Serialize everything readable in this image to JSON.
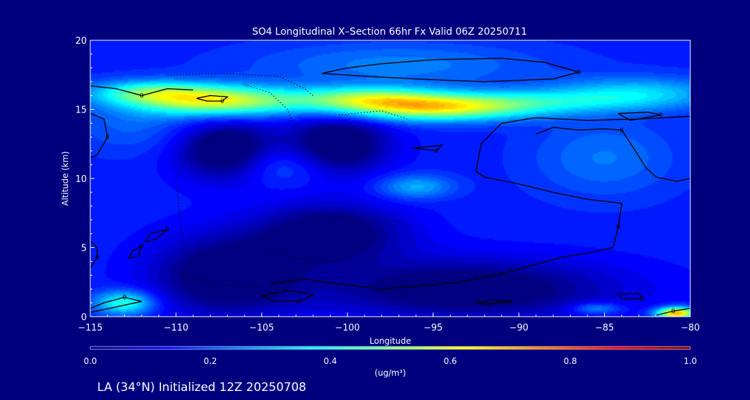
{
  "chart_data": {
    "type": "heatmap",
    "title": "SO4 Longitudinal X–Section 66hr  Fx Valid 06Z 20250711",
    "xlabel": "Longitude",
    "ylabel": "Altitude (km)",
    "xlim": [
      -115,
      -80
    ],
    "ylim": [
      0,
      20
    ],
    "x_ticks": [
      -115,
      -110,
      -105,
      -100,
      -95,
      -90,
      -85,
      -80
    ],
    "x_tick_labels": [
      "−115",
      "−110",
      "−105",
      "−100",
      "−95",
      "−90",
      "−85",
      "−80"
    ],
    "y_ticks": [
      0,
      5,
      10,
      15,
      20
    ],
    "colorbar": {
      "range": [
        0.0,
        1.0
      ],
      "ticks": [
        0.0,
        0.2,
        0.4,
        0.6,
        0.8,
        1.0
      ],
      "tick_labels": [
        "0.0",
        "0.2",
        "0.4",
        "0.6",
        "0.8",
        "1.0"
      ],
      "unit_label": "(ug/m³)",
      "colormap": "jet"
    },
    "background_value": 0.15,
    "features": [
      {
        "lon": -107.5,
        "alt": 15.6,
        "value": 0.58,
        "sx": 3.2,
        "sy": 0.75
      },
      {
        "lon": -111.5,
        "alt": 16.2,
        "value": 0.4,
        "sx": 2.5,
        "sy": 0.6
      },
      {
        "lon": -95.0,
        "alt": 15.1,
        "value": 0.58,
        "sx": 4.0,
        "sy": 0.65
      },
      {
        "lon": -99.0,
        "alt": 15.8,
        "value": 0.45,
        "sx": 3.0,
        "sy": 0.6
      },
      {
        "lon": -89.0,
        "alt": 15.6,
        "value": 0.3,
        "sx": 4.5,
        "sy": 0.6
      },
      {
        "lon": -83.0,
        "alt": 16.2,
        "value": 0.32,
        "sx": 3.5,
        "sy": 0.8
      },
      {
        "lon": -97.0,
        "alt": 18.2,
        "value": 0.25,
        "sx": 6.0,
        "sy": 1.2
      },
      {
        "lon": -112.5,
        "alt": 14.0,
        "value": 0.22,
        "sx": 2.5,
        "sy": 1.5
      },
      {
        "lon": -96.0,
        "alt": 9.4,
        "value": 0.3,
        "sx": 1.5,
        "sy": 0.6
      },
      {
        "lon": -104.0,
        "alt": 11.0,
        "value": 0.24,
        "sx": 2.0,
        "sy": 1.0
      },
      {
        "lon": -85.0,
        "alt": 11.5,
        "value": 0.24,
        "sx": 3.0,
        "sy": 2.0
      },
      {
        "lon": -113.0,
        "alt": 1.0,
        "value": 0.42,
        "sx": 1.2,
        "sy": 0.6
      },
      {
        "lon": -80.8,
        "alt": 0.25,
        "value": 0.72,
        "sx": 0.8,
        "sy": 0.3
      },
      {
        "lon": -85.5,
        "alt": 0.6,
        "value": 0.3,
        "sx": 1.0,
        "sy": 0.3
      },
      {
        "lon": -107.0,
        "alt": 12.0,
        "value": -0.07,
        "sx": 2.0,
        "sy": 1.5
      },
      {
        "lon": -100.5,
        "alt": 12.5,
        "value": -0.07,
        "sx": 2.0,
        "sy": 1.5
      },
      {
        "lon": -101.0,
        "alt": 6.0,
        "value": -0.05,
        "sx": 3.0,
        "sy": 1.5
      },
      {
        "lon": -107.0,
        "alt": 3.0,
        "value": -0.06,
        "sx": 3.0,
        "sy": 2.0
      },
      {
        "lon": -93.0,
        "alt": 2.0,
        "value": -0.05,
        "sx": 6.0,
        "sy": 1.5
      }
    ],
    "contours": [
      {
        "label": "0",
        "style": "solid",
        "points": [
          [
            -101.5,
            17.6
          ],
          [
            -100,
            18.0
          ],
          [
            -98,
            18.3
          ],
          [
            -95,
            18.6
          ],
          [
            -91,
            18.7
          ],
          [
            -88.5,
            18.4
          ],
          [
            -86.5,
            17.7
          ],
          [
            -88,
            17.2
          ],
          [
            -92,
            17.0
          ],
          [
            -96,
            17.2
          ],
          [
            -99,
            17.4
          ],
          [
            -101.5,
            17.6
          ]
        ]
      },
      {
        "label": "0",
        "style": "solid",
        "points": [
          [
            -115,
            16.7
          ],
          [
            -113.5,
            16.5
          ],
          [
            -112,
            16.0
          ],
          [
            -110.5,
            16.5
          ],
          [
            -109,
            16.4
          ]
        ]
      },
      {
        "label": "0",
        "style": "solid",
        "points": [
          [
            -108.8,
            15.8
          ],
          [
            -108,
            16.0
          ],
          [
            -107,
            15.9
          ],
          [
            -107.3,
            15.6
          ],
          [
            -108.2,
            15.6
          ],
          [
            -108.8,
            15.8
          ]
        ]
      },
      {
        "label": "0",
        "style": "solid",
        "points": [
          [
            -115,
            14.7
          ],
          [
            -114.2,
            14.3
          ],
          [
            -114.0,
            13.0
          ],
          [
            -114.6,
            11.7
          ],
          [
            -115,
            11.5
          ]
        ]
      },
      {
        "label": "0",
        "style": "solid",
        "points": [
          [
            -96.2,
            12.2
          ],
          [
            -94.5,
            12.4
          ],
          [
            -94.8,
            12.0
          ],
          [
            -96.2,
            12.2
          ]
        ]
      },
      {
        "label": "0",
        "style": "solid",
        "points": [
          [
            -80,
            14.5
          ],
          [
            -83,
            14.3
          ],
          [
            -86,
            14.2
          ],
          [
            -89,
            14.4
          ],
          [
            -91,
            14.0
          ],
          [
            -92.2,
            12.5
          ],
          [
            -92.5,
            10.5
          ],
          [
            -92.0,
            10.1
          ],
          [
            -90.0,
            9.6
          ],
          [
            -88.0,
            9.0
          ],
          [
            -86.0,
            8.5
          ],
          [
            -84.0,
            8.2
          ],
          [
            -84.2,
            6.5
          ],
          [
            -84.5,
            5.0
          ],
          [
            -86.0,
            4.6
          ],
          [
            -87.5,
            4.3
          ],
          [
            -89.0,
            3.8
          ],
          [
            -91.0,
            3.1
          ],
          [
            -93.5,
            2.5
          ],
          [
            -96.0,
            2.2
          ],
          [
            -98.0,
            2.0
          ],
          [
            -100.0,
            2.3
          ],
          [
            -102.5,
            2.7
          ],
          [
            -104.5,
            2.4
          ]
        ]
      },
      {
        "label": "0",
        "style": "solid",
        "points": [
          [
            -84.2,
            14.7
          ],
          [
            -82.5,
            14.8
          ],
          [
            -81.7,
            14.6
          ],
          [
            -83.5,
            14.2
          ],
          [
            -84.2,
            14.7
          ]
        ]
      },
      {
        "label": "0",
        "style": "solid",
        "points": [
          [
            -80,
            10.0
          ],
          [
            -80.8,
            9.8
          ],
          [
            -82.0,
            10.1
          ],
          [
            -82.6,
            10.8
          ],
          [
            -83.2,
            12.0
          ],
          [
            -84.0,
            13.5
          ],
          [
            -85.0,
            13.6
          ],
          [
            -86.5,
            13.5
          ],
          [
            -88.0,
            13.7
          ],
          [
            -89.0,
            13.2
          ]
        ]
      },
      {
        "label": "0",
        "style": "solid",
        "points": [
          [
            -115,
            0.3
          ],
          [
            -113.5,
            0.7
          ],
          [
            -112,
            1.1
          ],
          [
            -113,
            1.4
          ],
          [
            -114.2,
            1.0
          ],
          [
            -115,
            0.6
          ]
        ]
      },
      {
        "label": "0",
        "style": "solid",
        "points": [
          [
            -111.8,
            5.4
          ],
          [
            -111.5,
            6.0
          ],
          [
            -110.5,
            6.3
          ],
          [
            -111.2,
            5.6
          ],
          [
            -111.8,
            5.4
          ]
        ]
      },
      {
        "label": "0",
        "style": "solid",
        "points": [
          [
            -112.8,
            4.2
          ],
          [
            -112.5,
            4.8
          ],
          [
            -112.0,
            5.1
          ],
          [
            -112.2,
            4.4
          ],
          [
            -112.8,
            4.2
          ]
        ]
      },
      {
        "label": "0",
        "style": "solid",
        "points": [
          [
            -115,
            5.5
          ],
          [
            -114.6,
            5.0
          ],
          [
            -114.6,
            4.3
          ],
          [
            -115,
            3.5
          ]
        ]
      },
      {
        "label": "0",
        "style": "solid",
        "points": [
          [
            -105.0,
            1.5
          ],
          [
            -103.5,
            1.9
          ],
          [
            -102.0,
            1.6
          ],
          [
            -102.8,
            1.1
          ],
          [
            -104.2,
            1.1
          ],
          [
            -105.0,
            1.5
          ]
        ]
      },
      {
        "label": "0",
        "style": "solid",
        "points": [
          [
            -92.5,
            1.0
          ],
          [
            -91.5,
            1.2
          ],
          [
            -90.5,
            1.1
          ],
          [
            -91.8,
            0.9
          ],
          [
            -92.5,
            1.0
          ]
        ]
      },
      {
        "label": "0",
        "style": "solid",
        "points": [
          [
            -84.2,
            1.6
          ],
          [
            -83.0,
            1.7
          ],
          [
            -82.8,
            1.3
          ],
          [
            -84.0,
            1.3
          ],
          [
            -84.2,
            1.6
          ]
        ]
      },
      {
        "label": "0",
        "style": "solid",
        "points": [
          [
            -80,
            0.6
          ],
          [
            -81.0,
            0.4
          ],
          [
            -82.0,
            0.1
          ]
        ]
      },
      {
        "label": "",
        "style": "dotted",
        "points": [
          [
            -110.5,
            17.5
          ],
          [
            -107.0,
            17.6
          ],
          [
            -104.0,
            17.4
          ],
          [
            -102.5,
            16.5
          ],
          [
            -102.0,
            16.0
          ]
        ]
      },
      {
        "label": "",
        "style": "dotted",
        "points": [
          [
            -106.0,
            16.8
          ],
          [
            -104.5,
            16.2
          ],
          [
            -103.5,
            15.0
          ],
          [
            -103.0,
            13.5
          ]
        ]
      },
      {
        "label": "",
        "style": "dotted",
        "points": [
          [
            -100.5,
            14.6
          ],
          [
            -98.0,
            14.9
          ],
          [
            -96.5,
            14.3
          ]
        ]
      },
      {
        "label": "",
        "style": "dotted",
        "points": [
          [
            -107.0,
            13.5
          ],
          [
            -109.0,
            12.5
          ],
          [
            -110.0,
            10.0
          ],
          [
            -109.8,
            7.5
          ],
          [
            -109.5,
            5.0
          ]
        ]
      },
      {
        "label": "",
        "style": "dotted",
        "points": [
          [
            -104.0,
            7.6
          ],
          [
            -101.0,
            7.3
          ],
          [
            -98.5,
            7.1
          ],
          [
            -96.5,
            6.8
          ],
          [
            -96.0,
            5.5
          ],
          [
            -97.5,
            4.3
          ],
          [
            -100.5,
            4.0
          ],
          [
            -103.0,
            4.2
          ],
          [
            -104.5,
            4.8
          ]
        ]
      },
      {
        "label": "",
        "style": "dotted",
        "points": [
          [
            -110.5,
            3.5
          ],
          [
            -108.0,
            2.4
          ],
          [
            -105.0,
            2.1
          ]
        ]
      }
    ]
  },
  "footer": {
    "caption": "LA (34°N) Initialized 12Z 20250708"
  },
  "colors": {
    "background": "#00007f",
    "axes": "#ffffff",
    "contour": "#000000"
  }
}
